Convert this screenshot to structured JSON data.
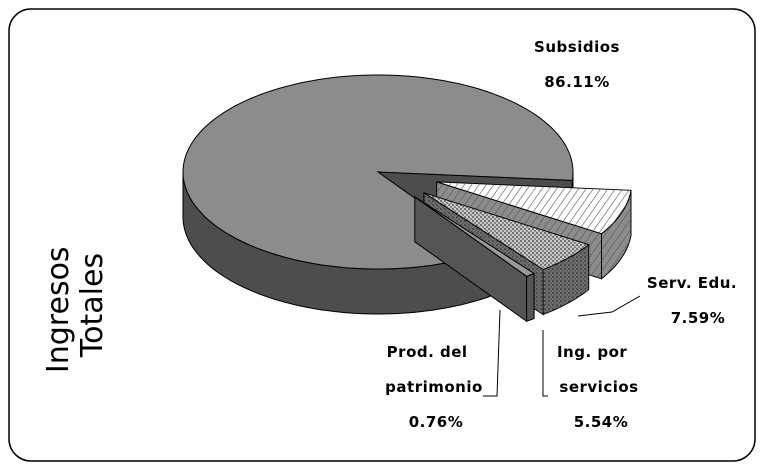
{
  "chart_data": {
    "type": "pie3d",
    "title": "Ingresos Totales",
    "categories": [
      "Subsidios",
      "Serv. Edu.",
      "Ing. por servicios",
      "Prod. del patrimonio"
    ],
    "values": [
      86.11,
      7.59,
      5.54,
      0.76
    ],
    "value_labels": [
      "86.11%",
      "7.59%",
      "5.54%",
      "0.76%"
    ],
    "colors": [
      "#8c8c8c",
      "#ffffff",
      "#c8c8c8",
      "#9a9a9a"
    ]
  }
}
